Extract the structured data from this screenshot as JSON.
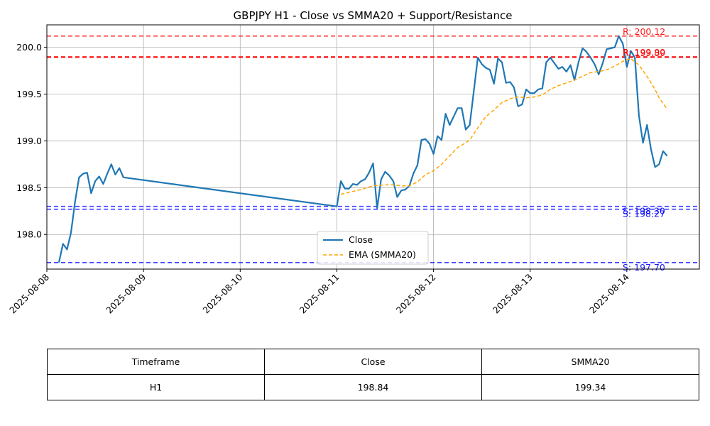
{
  "chart_data": {
    "type": "line",
    "title": "GBPJPY H1 - Close vs SMMA20 + Support/Resistance",
    "xlabel": "",
    "ylabel": "",
    "ylim": [
      197.63,
      200.24
    ],
    "xlim": [
      "2025-08-08 00:00",
      "2025-08-14 18:00"
    ],
    "x_ticks": [
      "2025-08-08",
      "2025-08-09",
      "2025-08-10",
      "2025-08-11",
      "2025-08-12",
      "2025-08-13",
      "2025-08-14"
    ],
    "y_ticks": [
      "198.0",
      "198.5",
      "199.0",
      "199.5",
      "200.0"
    ],
    "grid": true,
    "legend_position": "lower-center",
    "series": [
      {
        "name": "Close",
        "color": "#1f77b4",
        "style": "solid",
        "points": [
          [
            "2025-08-08 03:00",
            197.7
          ],
          [
            "2025-08-08 04:00",
            197.9
          ],
          [
            "2025-08-08 05:00",
            197.84
          ],
          [
            "2025-08-08 06:00",
            198.02
          ],
          [
            "2025-08-08 07:00",
            198.35
          ],
          [
            "2025-08-08 08:00",
            198.61
          ],
          [
            "2025-08-08 09:00",
            198.65
          ],
          [
            "2025-08-08 10:00",
            198.66
          ],
          [
            "2025-08-08 11:00",
            198.44
          ],
          [
            "2025-08-08 12:00",
            198.57
          ],
          [
            "2025-08-08 13:00",
            198.62
          ],
          [
            "2025-08-08 14:00",
            198.54
          ],
          [
            "2025-08-08 15:00",
            198.65
          ],
          [
            "2025-08-08 16:00",
            198.75
          ],
          [
            "2025-08-08 17:00",
            198.64
          ],
          [
            "2025-08-08 18:00",
            198.71
          ],
          [
            "2025-08-08 19:00",
            198.61
          ],
          [
            "2025-08-11 00:00",
            198.3
          ],
          [
            "2025-08-11 01:00",
            198.57
          ],
          [
            "2025-08-11 02:00",
            198.49
          ],
          [
            "2025-08-11 03:00",
            198.49
          ],
          [
            "2025-08-11 04:00",
            198.54
          ],
          [
            "2025-08-11 05:00",
            198.53
          ],
          [
            "2025-08-11 06:00",
            198.57
          ],
          [
            "2025-08-11 07:00",
            198.59
          ],
          [
            "2025-08-11 08:00",
            198.66
          ],
          [
            "2025-08-11 09:00",
            198.76
          ],
          [
            "2025-08-11 10:00",
            198.28
          ],
          [
            "2025-08-11 11:00",
            198.59
          ],
          [
            "2025-08-11 12:00",
            198.67
          ],
          [
            "2025-08-11 13:00",
            198.63
          ],
          [
            "2025-08-11 14:00",
            198.57
          ],
          [
            "2025-08-11 15:00",
            198.4
          ],
          [
            "2025-08-11 16:00",
            198.47
          ],
          [
            "2025-08-11 17:00",
            198.48
          ],
          [
            "2025-08-11 18:00",
            198.52
          ],
          [
            "2025-08-11 19:00",
            198.65
          ],
          [
            "2025-08-11 20:00",
            198.74
          ],
          [
            "2025-08-11 21:00",
            199.01
          ],
          [
            "2025-08-11 22:00",
            199.02
          ],
          [
            "2025-08-11 23:00",
            198.97
          ],
          [
            "2025-08-12 00:00",
            198.86
          ],
          [
            "2025-08-12 01:00",
            199.05
          ],
          [
            "2025-08-12 02:00",
            199.01
          ],
          [
            "2025-08-12 03:00",
            199.29
          ],
          [
            "2025-08-12 04:00",
            199.17
          ],
          [
            "2025-08-12 05:00",
            199.26
          ],
          [
            "2025-08-12 06:00",
            199.35
          ],
          [
            "2025-08-12 07:00",
            199.35
          ],
          [
            "2025-08-12 08:00",
            199.12
          ],
          [
            "2025-08-12 09:00",
            199.17
          ],
          [
            "2025-08-12 10:00",
            199.53
          ],
          [
            "2025-08-12 11:00",
            199.89
          ],
          [
            "2025-08-12 12:00",
            199.82
          ],
          [
            "2025-08-12 13:00",
            199.78
          ],
          [
            "2025-08-12 14:00",
            199.76
          ],
          [
            "2025-08-12 15:00",
            199.61
          ],
          [
            "2025-08-12 16:00",
            199.88
          ],
          [
            "2025-08-12 17:00",
            199.84
          ],
          [
            "2025-08-12 18:00",
            199.62
          ],
          [
            "2025-08-12 19:00",
            199.63
          ],
          [
            "2025-08-12 20:00",
            199.57
          ],
          [
            "2025-08-12 21:00",
            199.37
          ],
          [
            "2025-08-12 22:00",
            199.39
          ],
          [
            "2025-08-12 23:00",
            199.55
          ],
          [
            "2025-08-13 00:00",
            199.51
          ],
          [
            "2025-08-13 01:00",
            199.51
          ],
          [
            "2025-08-13 02:00",
            199.55
          ],
          [
            "2025-08-13 03:00",
            199.56
          ],
          [
            "2025-08-13 04:00",
            199.84
          ],
          [
            "2025-08-13 05:00",
            199.89
          ],
          [
            "2025-08-13 06:00",
            199.83
          ],
          [
            "2025-08-13 07:00",
            199.77
          ],
          [
            "2025-08-13 08:00",
            199.79
          ],
          [
            "2025-08-13 09:00",
            199.74
          ],
          [
            "2025-08-13 10:00",
            199.81
          ],
          [
            "2025-08-13 11:00",
            199.65
          ],
          [
            "2025-08-13 12:00",
            199.84
          ],
          [
            "2025-08-13 13:00",
            199.99
          ],
          [
            "2025-08-13 14:00",
            199.95
          ],
          [
            "2025-08-13 15:00",
            199.89
          ],
          [
            "2025-08-13 16:00",
            199.82
          ],
          [
            "2025-08-13 17:00",
            199.71
          ],
          [
            "2025-08-13 18:00",
            199.83
          ],
          [
            "2025-08-13 19:00",
            199.98
          ],
          [
            "2025-08-13 20:00",
            199.99
          ],
          [
            "2025-08-13 21:00",
            200.0
          ],
          [
            "2025-08-13 22:00",
            200.12
          ],
          [
            "2025-08-13 23:00",
            200.04
          ],
          [
            "2025-08-14 00:00",
            199.79
          ],
          [
            "2025-08-14 01:00",
            199.96
          ],
          [
            "2025-08-14 02:00",
            199.89
          ],
          [
            "2025-08-14 03:00",
            199.27
          ],
          [
            "2025-08-14 04:00",
            198.98
          ],
          [
            "2025-08-14 05:00",
            199.17
          ],
          [
            "2025-08-14 06:00",
            198.91
          ],
          [
            "2025-08-14 07:00",
            198.72
          ],
          [
            "2025-08-14 08:00",
            198.75
          ],
          [
            "2025-08-14 09:00",
            198.89
          ],
          [
            "2025-08-14 10:00",
            198.84
          ]
        ]
      },
      {
        "name": "EMA (SMMA20)",
        "color": "#ffa500",
        "style": "dashed",
        "points": [
          [
            "2025-08-11 01:00",
            198.43
          ],
          [
            "2025-08-11 03:00",
            198.45
          ],
          [
            "2025-08-11 06:00",
            198.48
          ],
          [
            "2025-08-11 09:00",
            198.52
          ],
          [
            "2025-08-11 12:00",
            198.53
          ],
          [
            "2025-08-11 14:00",
            198.53
          ],
          [
            "2025-08-11 16:00",
            198.52
          ],
          [
            "2025-08-11 18:00",
            198.52
          ],
          [
            "2025-08-11 20:00",
            198.56
          ],
          [
            "2025-08-11 22:00",
            198.64
          ],
          [
            "2025-08-12 00:00",
            198.68
          ],
          [
            "2025-08-12 02:00",
            198.75
          ],
          [
            "2025-08-12 04:00",
            198.84
          ],
          [
            "2025-08-12 06:00",
            198.93
          ],
          [
            "2025-08-12 08:00",
            198.98
          ],
          [
            "2025-08-12 09:00",
            199.01
          ],
          [
            "2025-08-12 11:00",
            199.14
          ],
          [
            "2025-08-12 13:00",
            199.26
          ],
          [
            "2025-08-12 15:00",
            199.33
          ],
          [
            "2025-08-12 17:00",
            199.41
          ],
          [
            "2025-08-12 19:00",
            199.45
          ],
          [
            "2025-08-12 21:00",
            199.47
          ],
          [
            "2025-08-12 23:00",
            199.46
          ],
          [
            "2025-08-13 01:00",
            199.47
          ],
          [
            "2025-08-13 03:00",
            199.49
          ],
          [
            "2025-08-13 05:00",
            199.55
          ],
          [
            "2025-08-13 07:00",
            199.59
          ],
          [
            "2025-08-13 09:00",
            199.62
          ],
          [
            "2025-08-13 11:00",
            199.65
          ],
          [
            "2025-08-13 13:00",
            199.69
          ],
          [
            "2025-08-13 15:00",
            199.73
          ],
          [
            "2025-08-13 17:00",
            199.74
          ],
          [
            "2025-08-13 19:00",
            199.76
          ],
          [
            "2025-08-13 21:00",
            199.8
          ],
          [
            "2025-08-13 23:00",
            199.85
          ],
          [
            "2025-08-14 01:00",
            199.88
          ],
          [
            "2025-08-14 03:00",
            199.81
          ],
          [
            "2025-08-14 05:00",
            199.69
          ],
          [
            "2025-08-14 07:00",
            199.55
          ],
          [
            "2025-08-14 08:00",
            199.46
          ],
          [
            "2025-08-14 10:00",
            199.34
          ]
        ]
      }
    ],
    "hlines": [
      {
        "kind": "resistance",
        "value": 200.12,
        "label": "R: 200.12",
        "color": "#ff0000"
      },
      {
        "kind": "resistance",
        "value": 199.9,
        "label": "R: 199.90",
        "color": "#ff0000"
      },
      {
        "kind": "resistance",
        "value": 199.89,
        "label": "R: 199.89",
        "color": "#ff0000"
      },
      {
        "kind": "support",
        "value": 198.3,
        "label": "S: 198.30",
        "color": "#0000ff"
      },
      {
        "kind": "support",
        "value": 198.27,
        "label": "S: 198.27",
        "color": "#0000ff"
      },
      {
        "kind": "support",
        "value": 197.7,
        "label": "S: 197.70",
        "color": "#0000ff"
      }
    ]
  },
  "table": {
    "headers": [
      "Timeframe",
      "Close",
      "SMMA20"
    ],
    "row": [
      "H1",
      "198.84",
      "199.34"
    ]
  }
}
